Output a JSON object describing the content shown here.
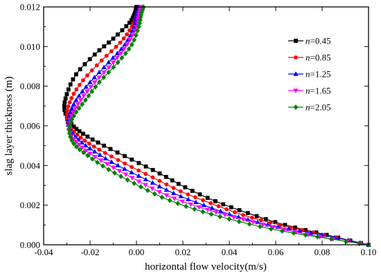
{
  "chart_data": {
    "type": "line",
    "title": "",
    "xlabel": "horizontal flow velocity(m/s)",
    "ylabel": "slag layer thickness (m)",
    "xlim": [
      -0.04,
      0.1
    ],
    "ylim": [
      0.0,
      0.012
    ],
    "x_ticks": [
      "-0.04",
      "-0.02",
      "0.00",
      "0.02",
      "0.04",
      "0.06",
      "0.08",
      "0.10"
    ],
    "y_ticks": [
      "0.000",
      "0.002",
      "0.004",
      "0.006",
      "0.008",
      "0.010",
      "0.012"
    ],
    "grid": false,
    "legend_position": "top-right",
    "legend_prefix": "n",
    "series": [
      {
        "name": "=0.45",
        "color": "#000000",
        "marker": "square",
        "points": [
          [
            0.1,
            0.0
          ],
          [
            0.082,
            0.0005
          ],
          [
            0.064,
            0.001
          ],
          [
            0.048,
            0.0016
          ],
          [
            0.034,
            0.0022
          ],
          [
            0.021,
            0.0029
          ],
          [
            0.01,
            0.0036
          ],
          [
            -0.002,
            0.0043
          ],
          [
            -0.014,
            0.005
          ],
          [
            -0.023,
            0.0056
          ],
          [
            -0.028,
            0.0061
          ],
          [
            -0.031,
            0.0068
          ],
          [
            -0.03,
            0.0076
          ],
          [
            -0.026,
            0.0086
          ],
          [
            -0.018,
            0.0096
          ],
          [
            -0.01,
            0.0104
          ],
          [
            -0.003,
            0.0112
          ],
          [
            -0.001,
            0.0116
          ],
          [
            0.0,
            0.012
          ]
        ]
      },
      {
        "name": "=0.85",
        "color": "#ff0000",
        "marker": "circle",
        "points": [
          [
            0.1,
            0.0
          ],
          [
            0.081,
            0.0005
          ],
          [
            0.062,
            0.001
          ],
          [
            0.046,
            0.0015
          ],
          [
            0.032,
            0.0021
          ],
          [
            0.019,
            0.0027
          ],
          [
            0.007,
            0.0034
          ],
          [
            -0.005,
            0.0041
          ],
          [
            -0.016,
            0.0048
          ],
          [
            -0.024,
            0.0054
          ],
          [
            -0.029,
            0.006
          ],
          [
            -0.03,
            0.0066
          ],
          [
            -0.028,
            0.0074
          ],
          [
            -0.023,
            0.0083
          ],
          [
            -0.015,
            0.0093
          ],
          [
            -0.007,
            0.0102
          ],
          [
            -0.002,
            0.011
          ],
          [
            -0.0,
            0.0116
          ],
          [
            0.001,
            0.012
          ]
        ]
      },
      {
        "name": "=1.25",
        "color": "#0000ff",
        "marker": "triangle-up",
        "points": [
          [
            0.1,
            0.0
          ],
          [
            0.08,
            0.0005
          ],
          [
            0.061,
            0.0009
          ],
          [
            0.044,
            0.0014
          ],
          [
            0.029,
            0.002
          ],
          [
            0.016,
            0.0026
          ],
          [
            0.004,
            0.0033
          ],
          [
            -0.008,
            0.004
          ],
          [
            -0.018,
            0.0047
          ],
          [
            -0.025,
            0.0053
          ],
          [
            -0.029,
            0.0059
          ],
          [
            -0.029,
            0.0065
          ],
          [
            -0.026,
            0.0073
          ],
          [
            -0.02,
            0.0082
          ],
          [
            -0.012,
            0.0092
          ],
          [
            -0.005,
            0.0101
          ],
          [
            -0.001,
            0.011
          ],
          [
            0.0,
            0.0116
          ],
          [
            0.001,
            0.012
          ]
        ]
      },
      {
        "name": "=1.65",
        "color": "#ff00ff",
        "marker": "triangle-down",
        "points": [
          [
            0.1,
            0.0
          ],
          [
            0.079,
            0.0004
          ],
          [
            0.059,
            0.0009
          ],
          [
            0.042,
            0.0014
          ],
          [
            0.027,
            0.0019
          ],
          [
            0.013,
            0.0025
          ],
          [
            0.001,
            0.0032
          ],
          [
            -0.01,
            0.0039
          ],
          [
            -0.02,
            0.0046
          ],
          [
            -0.026,
            0.0052
          ],
          [
            -0.029,
            0.0058
          ],
          [
            -0.028,
            0.0065
          ],
          [
            -0.024,
            0.0073
          ],
          [
            -0.018,
            0.0082
          ],
          [
            -0.01,
            0.0092
          ],
          [
            -0.004,
            0.0101
          ],
          [
            -0.0,
            0.011
          ],
          [
            0.001,
            0.0116
          ],
          [
            0.002,
            0.012
          ]
        ]
      },
      {
        "name": "=2.05",
        "color": "#008000",
        "marker": "diamond",
        "points": [
          [
            0.1,
            0.0
          ],
          [
            0.078,
            0.0004
          ],
          [
            0.058,
            0.0008
          ],
          [
            0.04,
            0.0013
          ],
          [
            0.025,
            0.0018
          ],
          [
            0.011,
            0.0024
          ],
          [
            -0.001,
            0.0031
          ],
          [
            -0.012,
            0.0038
          ],
          [
            -0.021,
            0.0045
          ],
          [
            -0.027,
            0.0051
          ],
          [
            -0.029,
            0.0058
          ],
          [
            -0.027,
            0.0065
          ],
          [
            -0.022,
            0.0073
          ],
          [
            -0.016,
            0.0082
          ],
          [
            -0.008,
            0.0092
          ],
          [
            -0.002,
            0.0101
          ],
          [
            0.001,
            0.011
          ],
          [
            0.002,
            0.0116
          ],
          [
            0.003,
            0.012
          ]
        ]
      }
    ]
  }
}
